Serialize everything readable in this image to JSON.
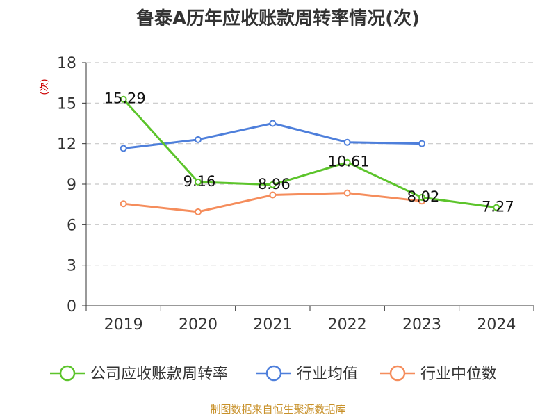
{
  "chart_data": {
    "type": "line",
    "title": "鲁泰A历年应收账款周转率情况(次)",
    "ylabel": "(次)",
    "ylim": [
      0,
      18
    ],
    "yticks": [
      0,
      3,
      6,
      9,
      12,
      15,
      18
    ],
    "categories": [
      "2019",
      "2020",
      "2021",
      "2022",
      "2023",
      "2024"
    ],
    "grid": true,
    "legend_position": "bottom",
    "series": [
      {
        "name": "公司应收账款周转率",
        "color": "#5cc42b",
        "values": [
          15.29,
          9.16,
          8.96,
          10.61,
          8.02,
          7.27
        ],
        "labels": [
          "15.29",
          "9.16",
          "8.96",
          "10.61",
          "8.02",
          "7.27"
        ]
      },
      {
        "name": "行业均值",
        "color": "#4e7fdb",
        "values": [
          11.65,
          12.3,
          13.5,
          12.1,
          12.0,
          null
        ]
      },
      {
        "name": "行业中位数",
        "color": "#f58d5c",
        "values": [
          7.55,
          6.95,
          8.2,
          8.35,
          7.75,
          null
        ]
      }
    ]
  },
  "source": "制图数据来自恒生聚源数据库"
}
